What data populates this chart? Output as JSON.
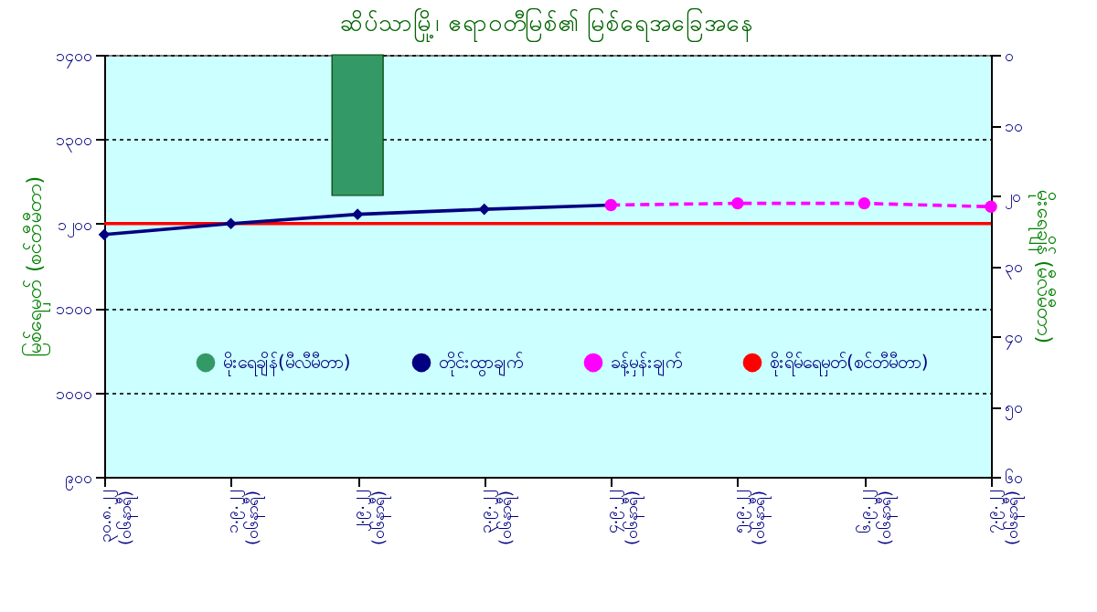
{
  "chart_data": {
    "type": "line",
    "title": "ဆိပ်သာမြို့၊ ဧရာဝတီမြစ်၏ မြစ်ရေအခြေအနေ",
    "ylabel": "မြစ်ရေမှတ် (စင်တီမီတာ)",
    "y2label": "မိုးရေချိန် (မီလီမီတာ)",
    "categories": [
      "၃၀.၈.၂၂ (၀၆နာရီ)",
      "၁.၉.၂၂ (၀၆နာရီ)",
      "၂.၉.၂၂ (၀၆နာရီ)",
      "၃.၉.၂၂ (၀၆နာရီ)",
      "၄.၉.၂၂ (၀၆နာရီ)",
      "၅.၉.၂၂ (၀၆နာရီ)",
      "၆.၉.၂၂ (၀၆နာရီ)",
      "၇.၉.၂၂ (၀၆နာရီ)"
    ],
    "ylim": [
      900,
      1400
    ],
    "yticks": [
      {
        "value": 900,
        "label": "၉၀၀"
      },
      {
        "value": 1000,
        "label": "၁၀၀၀"
      },
      {
        "value": 1100,
        "label": "၁၁၀၀"
      },
      {
        "value": 1200,
        "label": "၁၂၀၀"
      },
      {
        "value": 1300,
        "label": "၁၃၀၀"
      },
      {
        "value": 1400,
        "label": "၁၄၀၀"
      }
    ],
    "y2lim": [
      60,
      0
    ],
    "y2ticks": [
      {
        "value": 0,
        "label": "၀"
      },
      {
        "value": 10,
        "label": "၁၀"
      },
      {
        "value": 20,
        "label": "၂၀"
      },
      {
        "value": 30,
        "label": "၃၀"
      },
      {
        "value": 40,
        "label": "၄၀"
      },
      {
        "value": 50,
        "label": "၅၀"
      },
      {
        "value": 60,
        "label": "၆၀"
      }
    ],
    "grid": "y",
    "legend": "bottom",
    "series": [
      {
        "name": "မိုးရေချိန်(မီလီမီတာ)",
        "type": "bar",
        "axis": "y2",
        "color": "#339966",
        "values": [
          null,
          null,
          20,
          null,
          null,
          null,
          null,
          null
        ]
      },
      {
        "name": "တိုင်းထွာချက်",
        "color": "#000080",
        "marker": "diamond",
        "values": [
          1187,
          1200,
          1211,
          1217,
          1222,
          null,
          null,
          null
        ]
      },
      {
        "name": "ခန့်မှန်းချက်",
        "color": "#ff00ff",
        "marker": "circle",
        "line_style": "dashed",
        "values": [
          null,
          null,
          null,
          null,
          1222,
          1224,
          1224,
          1220
        ]
      },
      {
        "name": "စိုးရိမ်ရေမှတ်(စင်တီမီတာ)",
        "color": "#ff0000",
        "marker": "none",
        "values": [
          1200,
          1200,
          1200,
          1200,
          1200,
          1200,
          1200,
          1200
        ]
      }
    ]
  }
}
